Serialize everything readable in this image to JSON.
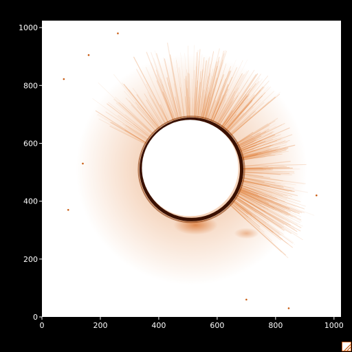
{
  "image": {
    "subject": "corona-image",
    "colormap": {
      "background": "#ffffff",
      "structure": "#e07a30",
      "dark": "#3a1000",
      "frame": "#000000"
    }
  },
  "axes": {
    "x": {
      "min": 0,
      "max": 1024,
      "ticks": [
        0,
        200,
        400,
        600,
        800,
        1000
      ]
    },
    "y": {
      "min": 0,
      "max": 1024,
      "ticks": [
        0,
        200,
        400,
        600,
        800,
        1000
      ]
    },
    "tick_color": "#ffffff"
  },
  "disk": {
    "center_x": 512,
    "center_y": 510,
    "occulter_radius": 165,
    "ring_radius": 172
  },
  "dots": [
    {
      "x": 260,
      "y": 980
    },
    {
      "x": 160,
      "y": 905
    },
    {
      "x": 75,
      "y": 822
    },
    {
      "x": 90,
      "y": 370
    },
    {
      "x": 700,
      "y": 60
    },
    {
      "x": 845,
      "y": 30
    },
    {
      "x": 940,
      "y": 420
    },
    {
      "x": 140,
      "y": 530
    }
  ],
  "corner_control": {
    "icon": "resize-grip-icon"
  }
}
